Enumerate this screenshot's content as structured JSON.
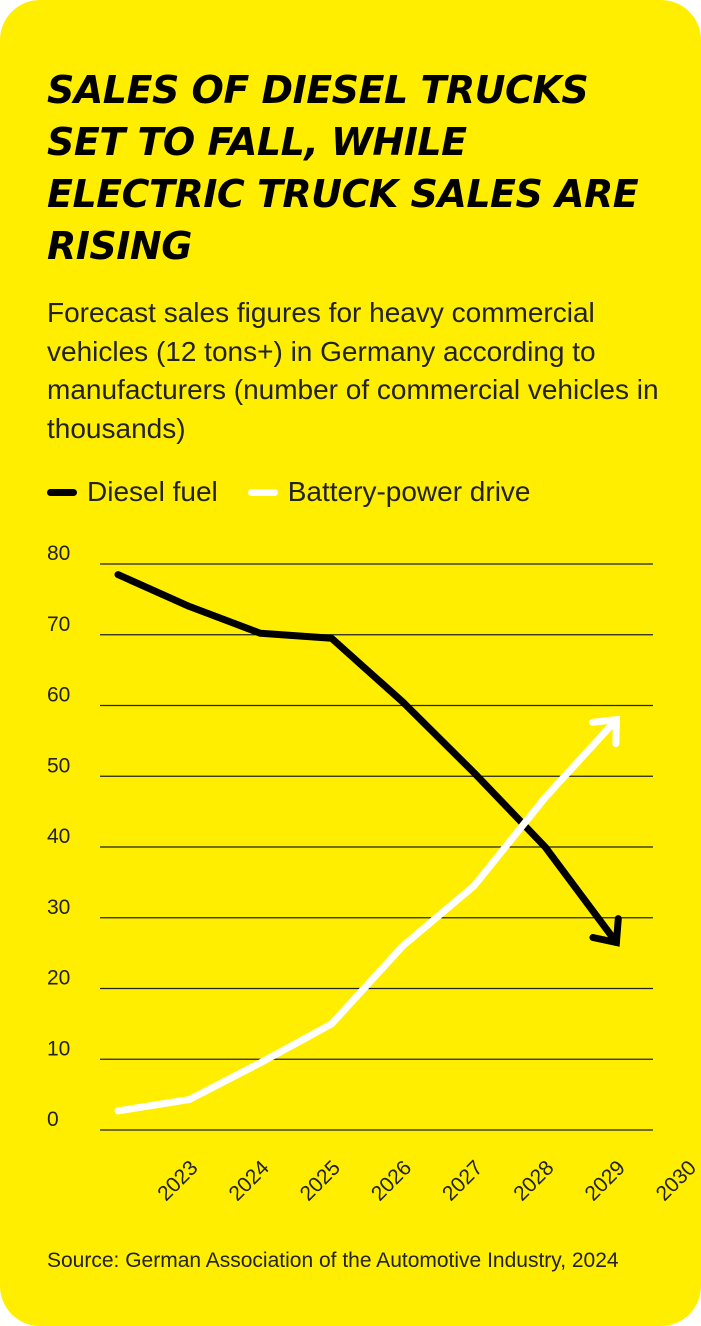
{
  "header": {
    "title": "SALES OF DIESEL TRUCKS SET TO FALL, WHILE ELECTRIC TRUCK SALES ARE RISING",
    "subtitle": "Forecast sales figures for heavy commercial vehicles (12 tons+) in Germany according to manufacturers (number of commercial vehicles in thousands)"
  },
  "legend": [
    {
      "label": "Diesel fuel",
      "color": "#000000"
    },
    {
      "label": "Battery-power drive",
      "color": "#ffffff"
    }
  ],
  "footer": {
    "source": "Source: German Association of the Automotive Industry, 2024"
  },
  "chart_data": {
    "type": "line",
    "title": "SALES OF DIESEL TRUCKS SET TO FALL, WHILE ELECTRIC TRUCK SALES ARE RISING",
    "xlabel": "",
    "ylabel": "",
    "categories": [
      "2023",
      "2024",
      "2025",
      "2026",
      "2027",
      "2028",
      "2029",
      "2030"
    ],
    "ylim": [
      0,
      80
    ],
    "yticks": [
      0,
      10,
      20,
      30,
      40,
      50,
      60,
      70,
      80
    ],
    "grid": true,
    "legend_position": "top-left",
    "series": [
      {
        "name": "Diesel fuel",
        "color": "#000000",
        "values": [
          78.5,
          74,
          70.2,
          69.5,
          60.5,
          50.5,
          40,
          26.5
        ]
      },
      {
        "name": "Battery-power drive",
        "color": "#ffffff",
        "values": [
          2.7,
          4.3,
          9.5,
          15,
          26,
          34.5,
          47,
          58
        ]
      }
    ]
  }
}
